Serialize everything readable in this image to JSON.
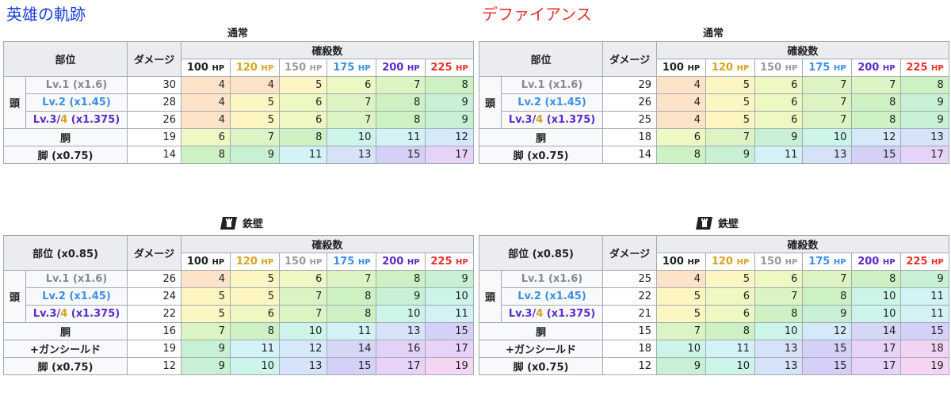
{
  "headers": {
    "part": "部位",
    "part_x085": "部位 (x0.85)",
    "damage": "ダメージ",
    "kills": "確殺数",
    "hp_unit": "HP"
  },
  "hp_columns": [
    {
      "value": "100",
      "color": "#202122"
    },
    {
      "value": "120",
      "color": "#d6a41e"
    },
    {
      "value": "150",
      "color": "#9a9a9a"
    },
    {
      "value": "175",
      "color": "#3a8ee6"
    },
    {
      "value": "200",
      "color": "#5b2bc9"
    },
    {
      "value": "225",
      "color": "#e8312a"
    }
  ],
  "kill_colors": {
    "4": "#fde4c8",
    "5": "#fdf6c3",
    "6": "#edf8c2",
    "7": "#dcf4c4",
    "8": "#cdf1c3",
    "9": "#c8f0d4",
    "10": "#ccf4e8",
    "11": "#d3f2f6",
    "12": "#d5e9fb",
    "13": "#d5e2f7",
    "14": "#d6d6f6",
    "15": "#d4d0f7",
    "16": "#e2d2f7",
    "17": "#e6d3f7",
    "18": "#f0d4f4",
    "19": "#f6d5f2"
  },
  "head_label": "頭",
  "rows_label": {
    "lv1": "Lv.1 (x1.6)",
    "lv2": "Lv.2 (x1.45)",
    "lv3_a": "Lv.3/",
    "lv3_b": "4",
    "lv3_c": " (x1.375)",
    "body": "胴",
    "gunshield": "+ガンシールド",
    "legs": "脚 (x0.75)"
  },
  "panels": [
    {
      "title": "英雄の軌跡",
      "sections": [
        {
          "caption": "通常",
          "badge": false,
          "rows": [
            {
              "key": "lv1",
              "damage": "30",
              "kills": [
                "4",
                "4",
                "5",
                "6",
                "7",
                "8"
              ]
            },
            {
              "key": "lv2",
              "damage": "28",
              "kills": [
                "4",
                "5",
                "6",
                "7",
                "8",
                "9"
              ]
            },
            {
              "key": "lv3",
              "damage": "26",
              "kills": [
                "4",
                "5",
                "6",
                "7",
                "8",
                "9"
              ]
            },
            {
              "key": "body",
              "damage": "19",
              "kills": [
                "6",
                "7",
                "8",
                "10",
                "11",
                "12"
              ]
            },
            {
              "key": "legs",
              "damage": "14",
              "kills": [
                "8",
                "9",
                "11",
                "13",
                "15",
                "17"
              ]
            }
          ]
        },
        {
          "caption": "鉄壁",
          "badge": true,
          "rows": [
            {
              "key": "lv1",
              "damage": "26",
              "kills": [
                "4",
                "5",
                "6",
                "7",
                "8",
                "9"
              ]
            },
            {
              "key": "lv2",
              "damage": "24",
              "kills": [
                "5",
                "5",
                "7",
                "8",
                "9",
                "10"
              ]
            },
            {
              "key": "lv3",
              "damage": "22",
              "kills": [
                "5",
                "6",
                "7",
                "8",
                "10",
                "11"
              ]
            },
            {
              "key": "body",
              "damage": "16",
              "kills": [
                "7",
                "8",
                "10",
                "11",
                "13",
                "15"
              ]
            },
            {
              "key": "gunshield",
              "damage": "19",
              "kills": [
                "9",
                "11",
                "12",
                "14",
                "16",
                "17"
              ]
            },
            {
              "key": "legs",
              "damage": "12",
              "kills": [
                "9",
                "10",
                "13",
                "15",
                "17",
                "19"
              ]
            }
          ]
        }
      ]
    },
    {
      "title": "デファイアンス",
      "sections": [
        {
          "caption": "通常",
          "badge": false,
          "rows": [
            {
              "key": "lv1",
              "damage": "29",
              "kills": [
                "4",
                "5",
                "6",
                "7",
                "7",
                "8"
              ]
            },
            {
              "key": "lv2",
              "damage": "26",
              "kills": [
                "4",
                "5",
                "6",
                "7",
                "8",
                "9"
              ]
            },
            {
              "key": "lv3",
              "damage": "25",
              "kills": [
                "4",
                "5",
                "6",
                "7",
                "8",
                "9"
              ]
            },
            {
              "key": "body",
              "damage": "18",
              "kills": [
                "6",
                "7",
                "9",
                "10",
                "12",
                "13"
              ]
            },
            {
              "key": "legs",
              "damage": "14",
              "kills": [
                "8",
                "9",
                "11",
                "13",
                "15",
                "17"
              ]
            }
          ]
        },
        {
          "caption": "鉄壁",
          "badge": true,
          "rows": [
            {
              "key": "lv1",
              "damage": "25",
              "kills": [
                "4",
                "5",
                "6",
                "7",
                "8",
                "9"
              ]
            },
            {
              "key": "lv2",
              "damage": "22",
              "kills": [
                "5",
                "6",
                "7",
                "8",
                "10",
                "11"
              ]
            },
            {
              "key": "lv3",
              "damage": "21",
              "kills": [
                "5",
                "6",
                "8",
                "9",
                "10",
                "11"
              ]
            },
            {
              "key": "body",
              "damage": "15",
              "kills": [
                "7",
                "8",
                "10",
                "12",
                "14",
                "15"
              ]
            },
            {
              "key": "gunshield",
              "damage": "18",
              "kills": [
                "10",
                "11",
                "13",
                "15",
                "17",
                "18"
              ]
            },
            {
              "key": "legs",
              "damage": "12",
              "kills": [
                "9",
                "10",
                "13",
                "15",
                "17",
                "19"
              ]
            }
          ]
        }
      ]
    }
  ]
}
